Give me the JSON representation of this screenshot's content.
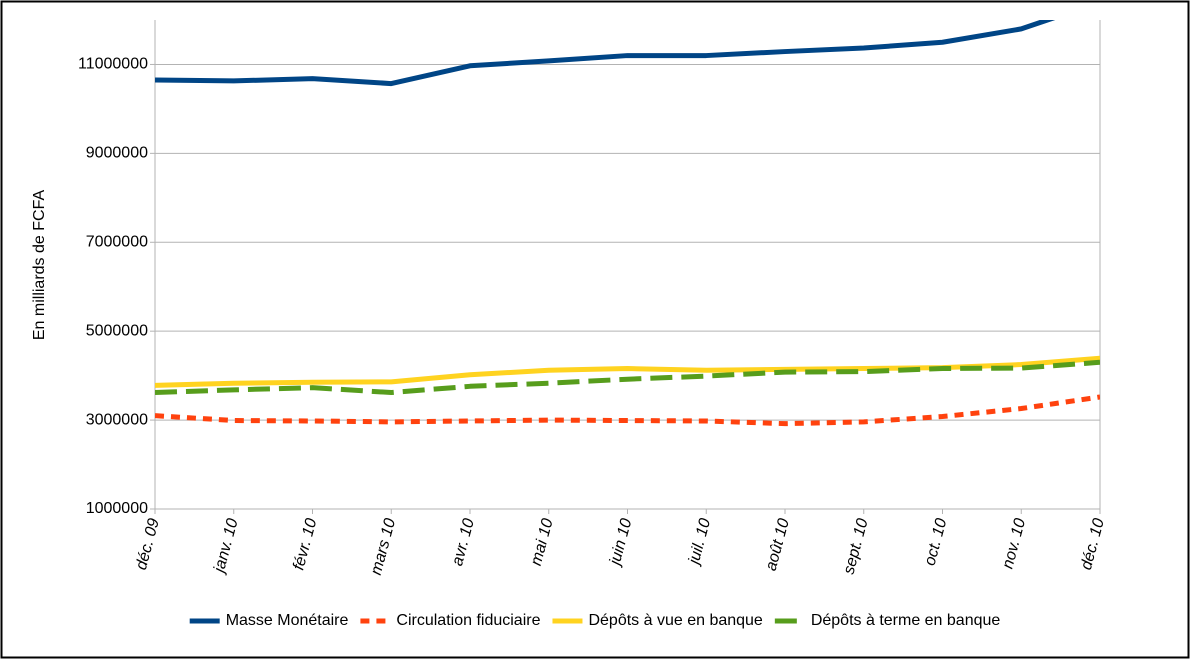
{
  "chart_data": {
    "type": "line",
    "y_label": "En milliards de FCFA",
    "categories": [
      "déc. 09",
      "janv. 10",
      "févr. 10",
      "mars 10",
      "avr. 10",
      "mai 10",
      "juin 10",
      "juil. 10",
      "août 10",
      "sept. 10",
      "oct. 10",
      "nov. 10",
      "déc. 10"
    ],
    "series": [
      {
        "name": "Masse Monétaire",
        "color": "#004586",
        "dash": "solid",
        "values": [
          10650000,
          10630000,
          10680000,
          10570000,
          10970000,
          11080000,
          11200000,
          11200000,
          11290000,
          11370000,
          11500000,
          11800000,
          12400000
        ]
      },
      {
        "name": "Circulation fiduciaire",
        "color": "#ff420e",
        "dash": "short-dash",
        "values": [
          3100000,
          2990000,
          2980000,
          2960000,
          2980000,
          3000000,
          2990000,
          2980000,
          2920000,
          2960000,
          3080000,
          3260000,
          3520000
        ]
      },
      {
        "name": "Dépôts à vue en banque",
        "color": "#ffd320",
        "dash": "solid",
        "values": [
          3780000,
          3830000,
          3850000,
          3860000,
          4020000,
          4120000,
          4160000,
          4120000,
          4140000,
          4160000,
          4180000,
          4250000,
          4390000
        ]
      },
      {
        "name": "Dépôts à terme en banque",
        "color": "#579d1c",
        "dash": "long-dash",
        "values": [
          3620000,
          3680000,
          3730000,
          3620000,
          3760000,
          3830000,
          3920000,
          3990000,
          4080000,
          4090000,
          4160000,
          4170000,
          4300000
        ]
      }
    ],
    "ylim": [
      1000000,
      12000000
    ],
    "yticks": [
      1000000,
      3000000,
      5000000,
      7000000,
      9000000,
      11000000
    ],
    "grid": true,
    "legend": "bottom"
  }
}
